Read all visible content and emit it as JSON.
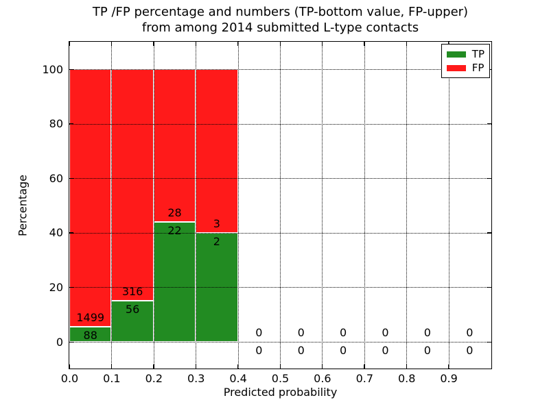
{
  "title": {
    "line1": "TP /FP percentage and numbers (TP-bottom value, FP-upper)",
    "line2": "from among 2014 submitted L-type contacts"
  },
  "axes": {
    "xlabel": "Predicted probability",
    "ylabel": "Percentage",
    "xtick_labels": [
      "0.0",
      "0.1",
      "0.2",
      "0.3",
      "0.4",
      "0.5",
      "0.6",
      "0.7",
      "0.8",
      "0.9"
    ],
    "ytick_labels": [
      "0",
      "20",
      "40",
      "60",
      "80",
      "100"
    ]
  },
  "legend": {
    "items": [
      {
        "label": "TP",
        "color": "#228b22"
      },
      {
        "label": "FP",
        "color": "#ff1a1a"
      }
    ]
  },
  "colors": {
    "tp": "#228b22",
    "fp": "#ff1a1a"
  },
  "chart_data": {
    "type": "bar",
    "stacked": true,
    "title": "TP /FP percentage and numbers (TP-bottom value, FP-upper) from among 2014 submitted L-type contacts",
    "xlabel": "Predicted probability",
    "ylabel": "Percentage",
    "xlim": [
      0.0,
      1.0
    ],
    "ylim": [
      -10,
      110
    ],
    "grid": true,
    "legend_position": "upper right",
    "xticks": [
      0.0,
      0.1,
      0.2,
      0.3,
      0.4,
      0.5,
      0.6,
      0.7,
      0.8,
      0.9
    ],
    "yticks": [
      0,
      20,
      40,
      60,
      80,
      100
    ],
    "series_note": "Green TP segment height = TP/(TP+FP)*100, red FP segment stacked to 100%. Labels show raw counts: FP above boundary, TP below.",
    "bins": [
      {
        "range": [
          0.0,
          0.1
        ],
        "tp_count": 88,
        "fp_count": 1499,
        "tp_pct": 5.5,
        "fp_pct": 94.5
      },
      {
        "range": [
          0.1,
          0.2
        ],
        "tp_count": 56,
        "fp_count": 316,
        "tp_pct": 15.1,
        "fp_pct": 84.9
      },
      {
        "range": [
          0.2,
          0.3
        ],
        "tp_count": 22,
        "fp_count": 28,
        "tp_pct": 44.0,
        "fp_pct": 56.0
      },
      {
        "range": [
          0.3,
          0.4
        ],
        "tp_count": 2,
        "fp_count": 3,
        "tp_pct": 40.0,
        "fp_pct": 60.0
      },
      {
        "range": [
          0.4,
          0.5
        ],
        "tp_count": 0,
        "fp_count": 0,
        "tp_pct": 0,
        "fp_pct": 0
      },
      {
        "range": [
          0.5,
          0.6
        ],
        "tp_count": 0,
        "fp_count": 0,
        "tp_pct": 0,
        "fp_pct": 0
      },
      {
        "range": [
          0.6,
          0.7
        ],
        "tp_count": 0,
        "fp_count": 0,
        "tp_pct": 0,
        "fp_pct": 0
      },
      {
        "range": [
          0.7,
          0.8
        ],
        "tp_count": 0,
        "fp_count": 0,
        "tp_pct": 0,
        "fp_pct": 0
      },
      {
        "range": [
          0.8,
          0.9
        ],
        "tp_count": 0,
        "fp_count": 0,
        "tp_pct": 0,
        "fp_pct": 0
      },
      {
        "range": [
          0.9,
          1.0
        ],
        "tp_count": 0,
        "fp_count": 0,
        "tp_pct": 0,
        "fp_pct": 0
      }
    ]
  }
}
